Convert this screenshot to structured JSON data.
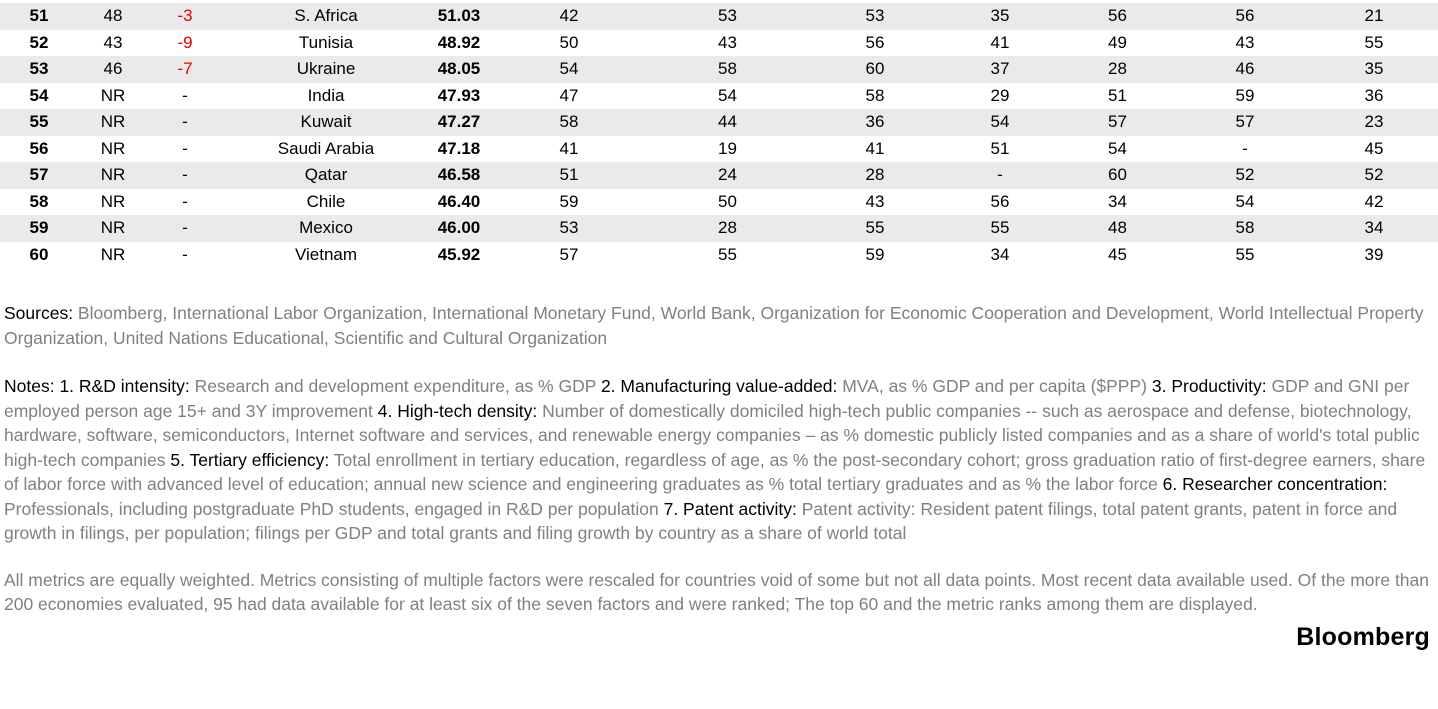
{
  "chart_data": {
    "type": "table",
    "description": "Bloomberg innovation ranking table, ranks 51-60, with overall score and seven metric ranks per country",
    "rows": [
      {
        "rank": "51",
        "prev_rank": "48",
        "change": "-3",
        "country": "S. Africa",
        "score": "51.03",
        "metric_ranks": [
          "42",
          "53",
          "53",
          "35",
          "56",
          "56",
          "21"
        ]
      },
      {
        "rank": "52",
        "prev_rank": "43",
        "change": "-9",
        "country": "Tunisia",
        "score": "48.92",
        "metric_ranks": [
          "50",
          "43",
          "56",
          "41",
          "49",
          "43",
          "55"
        ]
      },
      {
        "rank": "53",
        "prev_rank": "46",
        "change": "-7",
        "country": "Ukraine",
        "score": "48.05",
        "metric_ranks": [
          "54",
          "58",
          "60",
          "37",
          "28",
          "46",
          "35"
        ]
      },
      {
        "rank": "54",
        "prev_rank": "NR",
        "change": "-",
        "country": "India",
        "score": "47.93",
        "metric_ranks": [
          "47",
          "54",
          "58",
          "29",
          "51",
          "59",
          "36"
        ]
      },
      {
        "rank": "55",
        "prev_rank": "NR",
        "change": "-",
        "country": "Kuwait",
        "score": "47.27",
        "metric_ranks": [
          "58",
          "44",
          "36",
          "54",
          "57",
          "57",
          "23"
        ]
      },
      {
        "rank": "56",
        "prev_rank": "NR",
        "change": "-",
        "country": "Saudi Arabia",
        "score": "47.18",
        "metric_ranks": [
          "41",
          "19",
          "41",
          "51",
          "54",
          "-",
          "45"
        ]
      },
      {
        "rank": "57",
        "prev_rank": "NR",
        "change": "-",
        "country": "Qatar",
        "score": "46.58",
        "metric_ranks": [
          "51",
          "24",
          "28",
          "-",
          "60",
          "52",
          "52"
        ]
      },
      {
        "rank": "58",
        "prev_rank": "NR",
        "change": "-",
        "country": "Chile",
        "score": "46.40",
        "metric_ranks": [
          "59",
          "50",
          "43",
          "56",
          "34",
          "54",
          "42"
        ]
      },
      {
        "rank": "59",
        "prev_rank": "NR",
        "change": "-",
        "country": "Mexico",
        "score": "46.00",
        "metric_ranks": [
          "53",
          "28",
          "55",
          "55",
          "48",
          "58",
          "34"
        ]
      },
      {
        "rank": "60",
        "prev_rank": "NR",
        "change": "-",
        "country": "Vietnam",
        "score": "45.92",
        "metric_ranks": [
          "57",
          "55",
          "59",
          "34",
          "45",
          "55",
          "39"
        ]
      }
    ]
  },
  "paragraphs": {
    "sources": [
      {
        "style": "label",
        "text": "Sources:"
      },
      {
        "style": "normal",
        "text": " Bloomberg, International Labor Organization, International Monetary Fund, World Bank, Organization for Economic Cooperation and Development, World Intellectual Property Organization, United Nations Educational, Scientific and Cultural Organization"
      }
    ],
    "notes": [
      {
        "style": "label",
        "text": "Notes: 1. R&D intensity:"
      },
      {
        "style": "normal",
        "text": " Research and development expenditure, as % GDP "
      },
      {
        "style": "label",
        "text": "2. Manufacturing value-added:"
      },
      {
        "style": "normal",
        "text": " MVA, as % GDP and per capita ($PPP) "
      },
      {
        "style": "label",
        "text": "3. Productivity:"
      },
      {
        "style": "normal",
        "text": " GDP and GNI per employed person age 15+ and 3Y improvement "
      },
      {
        "style": "label",
        "text": "4. High-tech density:"
      },
      {
        "style": "normal",
        "text": " Number of domestically domiciled high-tech public companies -- such as aerospace and defense, biotechnology, hardware, software, semiconductors, Internet software and services, and renewable energy companies – as % domestic publicly listed companies and as a share of world's total public high-tech companies "
      },
      {
        "style": "label",
        "text": "5. Tertiary efficiency:"
      },
      {
        "style": "normal",
        "text": " Total enrollment in tertiary education, regardless of age, as % the post-secondary cohort; gross graduation ratio of first-degree earners, share of labor force with advanced level of education; annual new science and engineering graduates as % total tertiary graduates and as % the labor force "
      },
      {
        "style": "label",
        "text": "6. Researcher concentration:"
      },
      {
        "style": "normal",
        "text": " Professionals, including postgraduate PhD students, engaged in R&D per population "
      },
      {
        "style": "label",
        "text": "7. Patent activity:"
      },
      {
        "style": "normal",
        "text": " Patent activity: Resident patent filings, total patent grants, patent in force and growth in filings, per population; filings per GDP and total grants and filing growth by country as a share of world total"
      }
    ],
    "footnote": [
      {
        "style": "normal",
        "text": "All metrics are equally weighted. Metrics consisting of multiple factors were rescaled for countries void of some but not all data points. Most recent data available used. Of the more than 200 economies evaluated, 95 had data available for at least six of the seven factors and were ranked; The top 60 and the metric ranks among them are displayed."
      }
    ]
  },
  "brand": "Bloomberg",
  "colors": {
    "negative_change": "#e60000",
    "row_stripe": "#eaeaea",
    "secondary_text": "#808080",
    "primary_text": "#000000"
  }
}
